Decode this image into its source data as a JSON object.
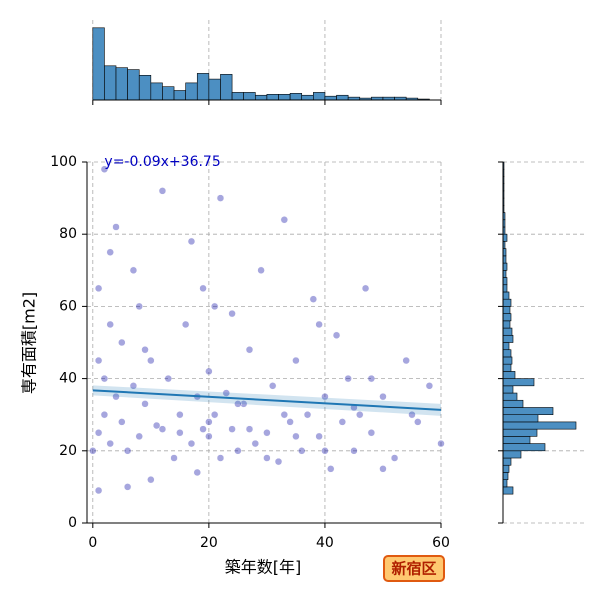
{
  "chart_data": {
    "type": "scatter",
    "x_label": "築年数[年]",
    "y_label": "専有面積[m2]",
    "annotation": "y=-0.09x+36.75",
    "badge": "新宿区",
    "xlim": [
      -1,
      60
    ],
    "ylim": [
      0,
      100
    ],
    "xticks": [
      0,
      20,
      40,
      60
    ],
    "yticks": [
      0,
      20,
      40,
      60,
      80,
      100
    ],
    "grid": true,
    "color": "#0000a0",
    "x": [
      1,
      1,
      1,
      1,
      2,
      2,
      3,
      3,
      4,
      4,
      5,
      5,
      6,
      7,
      7,
      8,
      8,
      9,
      10,
      10,
      11,
      12,
      13,
      14,
      15,
      16,
      17,
      17,
      18,
      18,
      19,
      19,
      20,
      20,
      21,
      22,
      22,
      23,
      24,
      24,
      25,
      26,
      27,
      28,
      29,
      30,
      31,
      32,
      33,
      34,
      35,
      36,
      37,
      38,
      39,
      40,
      41,
      42,
      43,
      44,
      45,
      46,
      47,
      48,
      50,
      52,
      54,
      56,
      58,
      60,
      2,
      6,
      12,
      20,
      25,
      30,
      35,
      40,
      45,
      50,
      3,
      9,
      15,
      21,
      27,
      33,
      39,
      48,
      55,
      0
    ],
    "y": [
      9,
      25,
      45,
      65,
      30,
      98,
      22,
      55,
      35,
      82,
      28,
      50,
      10,
      38,
      70,
      24,
      60,
      33,
      12,
      45,
      27,
      92,
      40,
      18,
      30,
      55,
      22,
      78,
      35,
      14,
      26,
      65,
      24,
      42,
      30,
      18,
      90,
      36,
      26,
      58,
      20,
      33,
      48,
      22,
      70,
      25,
      38,
      17,
      84,
      28,
      45,
      20,
      30,
      62,
      24,
      35,
      15,
      52,
      28,
      40,
      20,
      30,
      65,
      25,
      35,
      18,
      45,
      28,
      38,
      22,
      40,
      20,
      26,
      28,
      33,
      18,
      24,
      20,
      32,
      15,
      75,
      48,
      25,
      60,
      26,
      30,
      55,
      40,
      30,
      20
    ],
    "regression": {
      "color": "#1f77b4",
      "x": [
        0,
        60
      ],
      "y": [
        36.75,
        31.35
      ]
    },
    "marginal_x": {
      "type": "histogram",
      "color": "#4c8fc2",
      "ylim": [
        0,
        80
      ],
      "bins": [
        0,
        2,
        4,
        6,
        8,
        10,
        12,
        14,
        16,
        18,
        20,
        22,
        24,
        26,
        28,
        30,
        32,
        34,
        36,
        38,
        40,
        42,
        44,
        46,
        48,
        50,
        52,
        54,
        56,
        58,
        60
      ],
      "counts": [
        76,
        36,
        34,
        32,
        26,
        18,
        14,
        10,
        18,
        28,
        22,
        27,
        8,
        8,
        5,
        6,
        6,
        7,
        5,
        8,
        4,
        5,
        3,
        2,
        3,
        3,
        3,
        2,
        1,
        0
      ]
    },
    "marginal_y": {
      "type": "histogram",
      "color": "#4c8fc2",
      "xlim": [
        0,
        80
      ],
      "bins": [
        8,
        10,
        12,
        14,
        16,
        18,
        20,
        22,
        24,
        26,
        28,
        30,
        32,
        34,
        36,
        38,
        40,
        42,
        44,
        46,
        48,
        50,
        52,
        54,
        56,
        58,
        60,
        62,
        64,
        66,
        68,
        70,
        72,
        74,
        76,
        78,
        80,
        82,
        84,
        86,
        88,
        90,
        92,
        94,
        96,
        98,
        100
      ],
      "counts": [
        10,
        4,
        5,
        6,
        8,
        18,
        42,
        27,
        34,
        73,
        35,
        50,
        20,
        14,
        10,
        31,
        12,
        8,
        9,
        8,
        6,
        10,
        9,
        7,
        8,
        7,
        8,
        6,
        4,
        4,
        3,
        4,
        3,
        3,
        2,
        4,
        2,
        2,
        2,
        1,
        1,
        1,
        1,
        1,
        1,
        1
      ]
    }
  }
}
